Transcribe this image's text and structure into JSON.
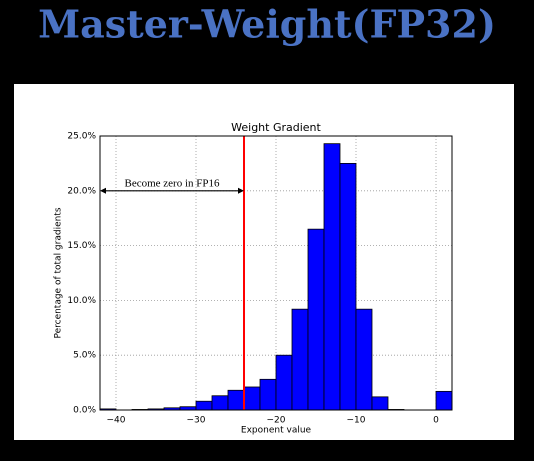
{
  "slide_title": "Master-Weight(FP32)",
  "chart_data": {
    "type": "histogram",
    "title": "Weight Gradient",
    "x_label": "Exponent value",
    "y_label": "Percentage of total gradients",
    "bins": [
      -42,
      -40,
      -38,
      -36,
      -34,
      -32,
      -30,
      -28,
      -26,
      -24,
      -22,
      -20,
      -18,
      -16,
      -14,
      -12,
      -10,
      -8,
      -6,
      -4,
      -2,
      0,
      2
    ],
    "values": [
      0.1,
      0.0,
      0.05,
      0.1,
      0.2,
      0.3,
      0.8,
      1.3,
      1.8,
      2.1,
      2.8,
      5.0,
      9.2,
      16.5,
      24.3,
      22.5,
      9.2,
      1.2,
      0.05,
      0,
      0,
      1.7
    ],
    "color": "#0000ff",
    "xlim": [
      -42,
      2
    ],
    "ylim": [
      0,
      25
    ],
    "xticks": [
      {
        "value": -40,
        "label": "−40"
      },
      {
        "value": -30,
        "label": "−30"
      },
      {
        "value": -20,
        "label": "−20"
      },
      {
        "value": -10,
        "label": "−10"
      },
      0
    ],
    "yticks": [
      {
        "value": 0,
        "label": "0.0%"
      },
      {
        "value": 5,
        "label": "5.0%"
      },
      {
        "value": 10,
        "label": "10.0%"
      },
      {
        "value": 15,
        "label": "15.0%"
      },
      {
        "value": 20,
        "label": "20.0%"
      },
      {
        "value": 25,
        "label": "25.0%"
      }
    ],
    "grid": true,
    "threshold": {
      "x": -24,
      "color": "#ff0000"
    },
    "annotation": {
      "text": "Become zero in FP16",
      "x": [
        -42,
        -24
      ],
      "y": 20
    }
  }
}
